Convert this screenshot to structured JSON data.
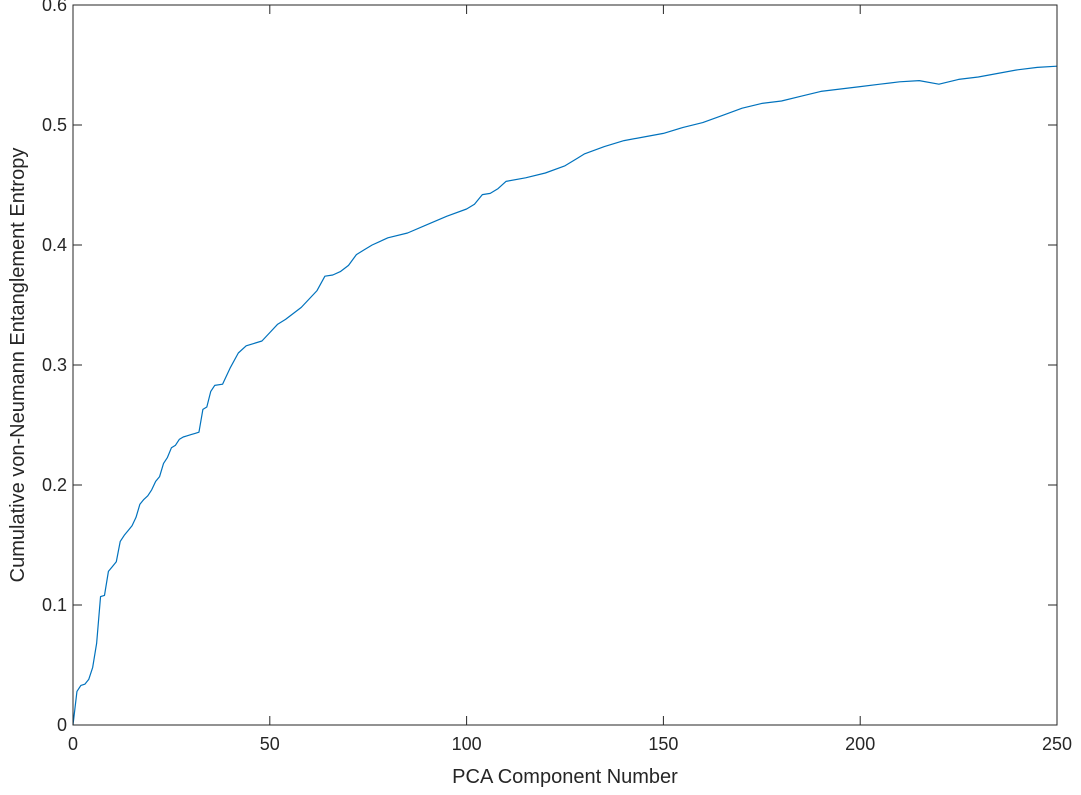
{
  "chart_data": {
    "type": "line",
    "title": "",
    "xlabel": "PCA Component Number",
    "ylabel": "Cumulative von-Neumann Entanglement Entropy",
    "xlim": [
      0,
      250
    ],
    "ylim": [
      0,
      0.6
    ],
    "xticks": [
      0,
      50,
      100,
      150,
      200,
      250
    ],
    "yticks": [
      0,
      0.1,
      0.2,
      0.3,
      0.4,
      0.5,
      0.6
    ],
    "xtick_labels": [
      "0",
      "50",
      "100",
      "150",
      "200",
      "250"
    ],
    "ytick_labels": [
      "0",
      "0.1",
      "0.2",
      "0.3",
      "0.4",
      "0.5",
      "0.6"
    ],
    "grid": false,
    "box": true,
    "series": [
      {
        "color": "#0072BD",
        "x": [
          0,
          1,
          2,
          3,
          4,
          5,
          6,
          7,
          8,
          9,
          10,
          11,
          12,
          13,
          14,
          15,
          16,
          17,
          18,
          19,
          20,
          21,
          22,
          23,
          24,
          25,
          26,
          27,
          28,
          29,
          30,
          31,
          32,
          33,
          34,
          35,
          36,
          38,
          40,
          42,
          44,
          46,
          48,
          50,
          52,
          54,
          56,
          58,
          60,
          62,
          64,
          66,
          68,
          70,
          72,
          74,
          76,
          78,
          80,
          85,
          90,
          95,
          100,
          102,
          104,
          106,
          108,
          110,
          115,
          120,
          125,
          128,
          130,
          135,
          140,
          145,
          150,
          155,
          160,
          165,
          170,
          175,
          180,
          185,
          190,
          195,
          200,
          205,
          210,
          215,
          220,
          225,
          230,
          235,
          240,
          245,
          250
        ],
        "y": [
          0,
          0.028,
          0.033,
          0.034,
          0.038,
          0.048,
          0.068,
          0.107,
          0.108,
          0.128,
          0.132,
          0.136,
          0.153,
          0.158,
          0.162,
          0.166,
          0.173,
          0.184,
          0.188,
          0.191,
          0.196,
          0.203,
          0.207,
          0.218,
          0.223,
          0.231,
          0.233,
          0.238,
          0.24,
          0.241,
          0.242,
          0.243,
          0.244,
          0.263,
          0.265,
          0.278,
          0.283,
          0.284,
          0.298,
          0.31,
          0.316,
          0.318,
          0.32,
          0.327,
          0.334,
          0.338,
          0.343,
          0.348,
          0.355,
          0.362,
          0.374,
          0.375,
          0.378,
          0.383,
          0.392,
          0.396,
          0.4,
          0.403,
          0.406,
          0.41,
          0.417,
          0.424,
          0.43,
          0.434,
          0.442,
          0.443,
          0.447,
          0.453,
          0.456,
          0.46,
          0.466,
          0.472,
          0.476,
          0.482,
          0.487,
          0.49,
          0.493,
          0.498,
          0.502,
          0.508,
          0.514,
          0.518,
          0.52,
          0.524,
          0.528,
          0.53,
          0.532,
          0.534,
          0.536,
          0.537,
          0.534,
          0.538,
          0.54,
          0.543,
          0.546,
          0.548,
          0.549
        ]
      }
    ]
  }
}
